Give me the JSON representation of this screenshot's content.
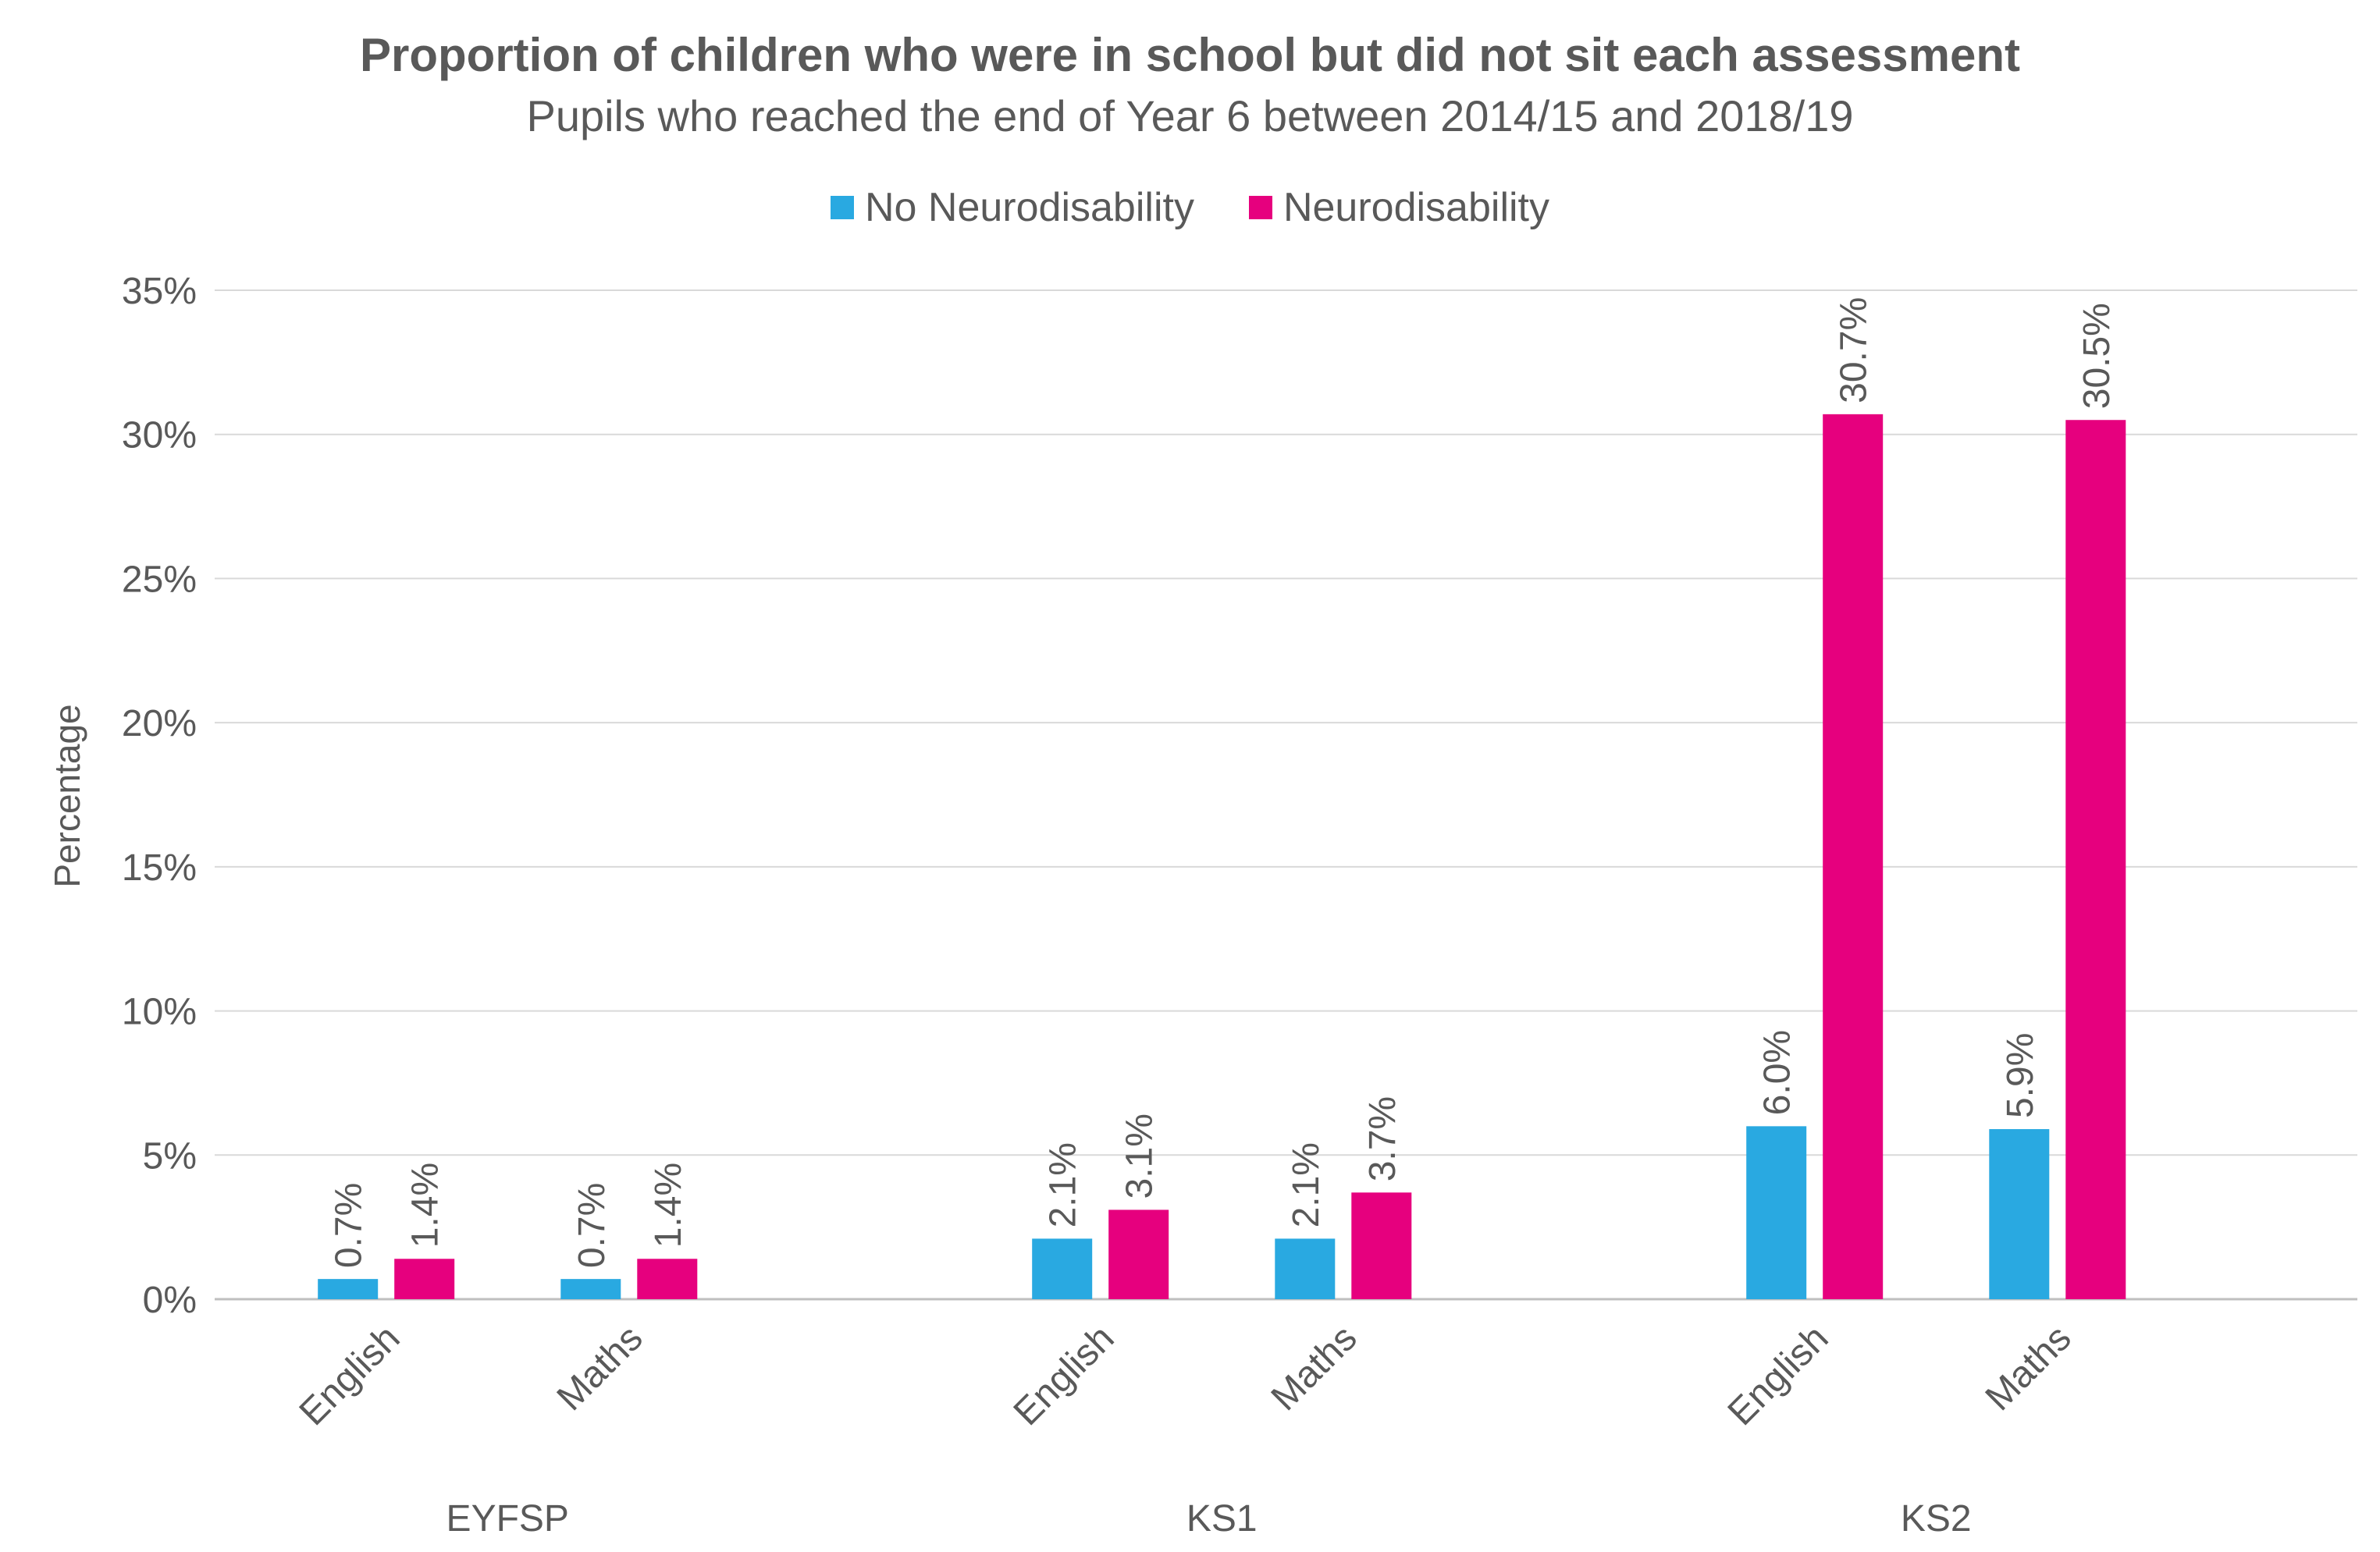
{
  "chart_data": {
    "type": "bar",
    "title": "Proportion of children who were in school but did not sit each assessment",
    "subtitle": "Pupils who reached the end of Year 6 between 2014/15 and 2018/19",
    "xlabel": "",
    "ylabel": "Percentage",
    "ylim": [
      0,
      35
    ],
    "yticks": [
      "0%",
      "5%",
      "10%",
      "15%",
      "20%",
      "25%",
      "30%",
      "35%"
    ],
    "grid": true,
    "legend_position": "top",
    "groups": [
      {
        "label": "EYFSP",
        "categories": [
          "English",
          "Maths"
        ]
      },
      {
        "label": "KS1",
        "categories": [
          "English",
          "Maths"
        ]
      },
      {
        "label": "KS2",
        "categories": [
          "English",
          "Maths"
        ]
      }
    ],
    "series": [
      {
        "name": "No Neurodisability",
        "color": "#29A9E1",
        "values": [
          0.7,
          0.7,
          2.1,
          2.1,
          6.0,
          5.9
        ],
        "labels": [
          "0.7%",
          "0.7%",
          "2.1%",
          "2.1%",
          "6.0%",
          "5.9%"
        ]
      },
      {
        "name": "Neurodisability",
        "color": "#E6007E",
        "values": [
          1.4,
          1.4,
          3.1,
          3.7,
          30.7,
          30.5
        ],
        "labels": [
          "1.4%",
          "1.4%",
          "3.1%",
          "3.7%",
          "30.7%",
          "30.5%"
        ]
      }
    ]
  }
}
